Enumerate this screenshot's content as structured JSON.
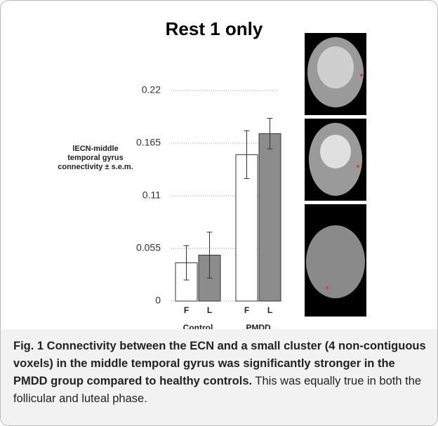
{
  "chart_data": {
    "type": "bar",
    "title": "Rest 1 only",
    "y_label": "lECN-middle temporal gyrus connectivity ± s.e.m.",
    "categories": [
      "F",
      "L",
      "F",
      "L"
    ],
    "groups": [
      "Control",
      "PMDD"
    ],
    "values": [
      0.04,
      0.048,
      0.153,
      0.175
    ],
    "errors": [
      0.018,
      0.024,
      0.025,
      0.016
    ],
    "colors": [
      "#ffffff",
      "#8c8c8c",
      "#ffffff",
      "#8c8c8c"
    ],
    "ylim": [
      0,
      0.22
    ],
    "yticks": [
      0,
      0.055,
      0.11,
      0.165,
      0.22
    ],
    "grid": true
  },
  "caption": {
    "bold": "Fig. 1 Connectivity between the ECN and a small cluster (4 non-contiguous voxels) in the middle temporal gyrus was significantly stronger in the PMDD group compared to healthy controls.",
    "text": "This was equally true in both the follicular and luteal phase."
  }
}
